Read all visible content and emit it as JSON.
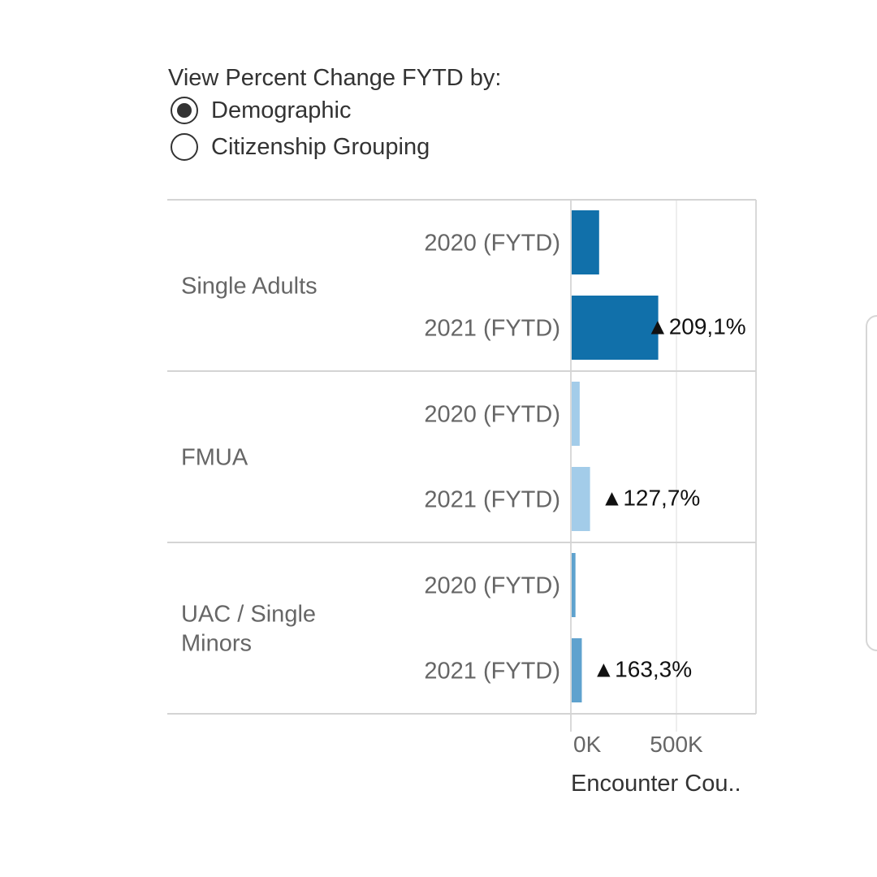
{
  "filter": {
    "title": "View Percent Change FYTD by:",
    "options": [
      {
        "label": "Demographic",
        "selected": true
      },
      {
        "label": "Citizenship Grouping",
        "selected": false
      }
    ]
  },
  "chart_data": {
    "type": "bar",
    "orientation": "horizontal",
    "xlabel": "Encounter Cou..",
    "xlim": [
      0,
      900000
    ],
    "x_ticks": [
      {
        "value": 0,
        "label": "0K"
      },
      {
        "value": 500000,
        "label": "500K"
      }
    ],
    "grid": true,
    "groups": [
      {
        "name": "Single Adults",
        "color": "#1170aa",
        "rows": [
          {
            "label": "2020 (FYTD)",
            "value": 130000
          },
          {
            "label": "2021 (FYTD)",
            "value": 410000
          }
        ],
        "change_label": "▲209,1%"
      },
      {
        "name": "FMUA",
        "color": "#a3cce9",
        "rows": [
          {
            "label": "2020 (FYTD)",
            "value": 38000
          },
          {
            "label": "2021 (FYTD)",
            "value": 87000
          }
        ],
        "change_label": "▲127,7%"
      },
      {
        "name": "UAC / Single Minors",
        "color": "#5fa2ce",
        "rows": [
          {
            "label": "2020 (FYTD)",
            "value": 18000
          },
          {
            "label": "2021 (FYTD)",
            "value": 48000
          }
        ],
        "change_label": "▲163,3%"
      }
    ]
  }
}
